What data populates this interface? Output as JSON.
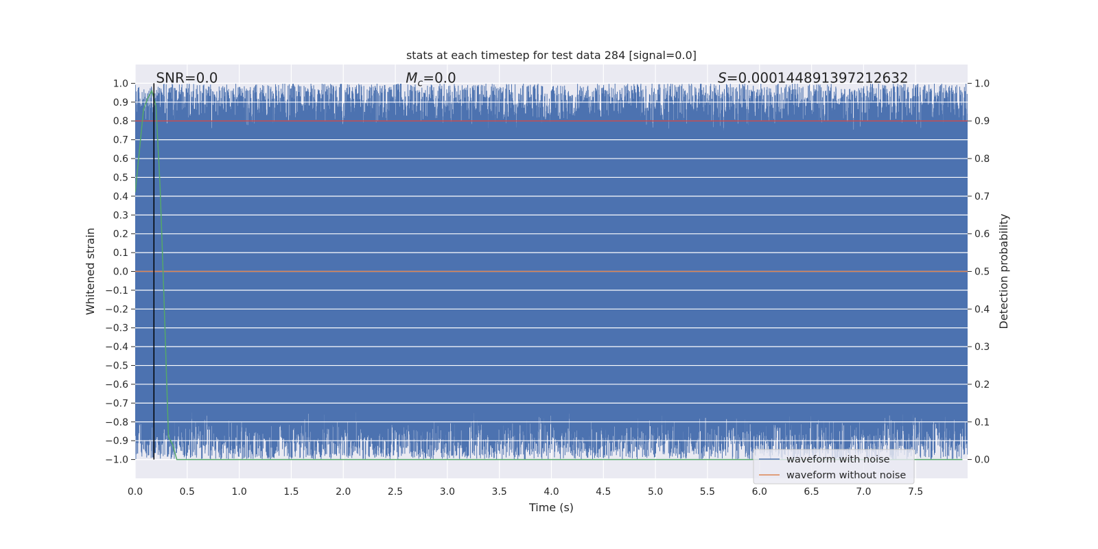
{
  "chart_data": {
    "type": "line",
    "title": "stats at each timestep for test data 284 [signal=0.0]",
    "xlabel": "Time (s)",
    "ylabel": "Whitened strain",
    "y2label": "Detection probability",
    "xlim": [
      0.0,
      8.0
    ],
    "ylim": [
      -1.1,
      1.1
    ],
    "y2lim": [
      -0.05,
      1.05
    ],
    "x_ticks": [
      0.0,
      0.5,
      1.0,
      1.5,
      2.0,
      2.5,
      3.0,
      3.5,
      4.0,
      4.5,
      5.0,
      5.5,
      6.0,
      6.5,
      7.0,
      7.5
    ],
    "x_tick_labels": [
      "0.0",
      "0.5",
      "1.0",
      "1.5",
      "2.0",
      "2.5",
      "3.0",
      "3.5",
      "4.0",
      "4.5",
      "5.0",
      "5.5",
      "6.0",
      "6.5",
      "7.0",
      "7.5"
    ],
    "y_ticks": [
      1.0,
      0.9,
      0.8,
      0.7,
      0.6,
      0.5,
      0.4,
      0.3,
      0.2,
      0.1,
      0.0,
      -0.1,
      -0.2,
      -0.3,
      -0.4,
      -0.5,
      -0.6,
      -0.7,
      -0.8,
      -0.9,
      -1.0
    ],
    "y_tick_labels": [
      "1.0",
      "0.9",
      "0.8",
      "0.7",
      "0.6",
      "0.5",
      "0.4",
      "0.3",
      "0.2",
      "0.1",
      "0.0",
      "−0.1",
      "−0.2",
      "−0.3",
      "−0.4",
      "−0.5",
      "−0.6",
      "−0.7",
      "−0.8",
      "−0.9",
      "−1.0"
    ],
    "y2_ticks": [
      1.0,
      0.9,
      0.8,
      0.7,
      0.6,
      0.5,
      0.4,
      0.3,
      0.2,
      0.1,
      0.0
    ],
    "y2_tick_labels": [
      "1.0",
      "0.9",
      "0.8",
      "0.7",
      "0.6",
      "0.5",
      "0.4",
      "0.3",
      "0.2",
      "0.1",
      "0.0"
    ],
    "grid": true,
    "legend_position": "lower-right",
    "series": [
      {
        "name": "waveform with noise",
        "color": "#4c72b0",
        "axis": "left",
        "description_values": {
          "min": -1.0,
          "max": 1.0,
          "typical_upper_envelope": [
            0.75,
            1.0
          ],
          "typical_lower_envelope": [
            -1.0,
            -0.75
          ]
        }
      },
      {
        "name": "waveform without noise",
        "color": "#dd8452",
        "axis": "left",
        "x": [
          0.0,
          8.0
        ],
        "y": [
          0.0,
          0.0
        ]
      },
      {
        "name": "",
        "color": "#55a868",
        "axis": "right",
        "x": [
          0.0,
          0.04,
          0.08,
          0.12,
          0.16,
          0.2,
          0.24,
          0.28,
          0.32,
          0.36,
          0.4,
          1.0,
          2.0,
          3.0,
          4.0,
          5.0,
          6.0,
          7.0,
          7.95
        ],
        "y": [
          0.71,
          0.82,
          0.93,
          0.96,
          0.98,
          0.94,
          0.72,
          0.4,
          0.06,
          0.04,
          0.0,
          0.0,
          0.0,
          0.0,
          0.0,
          0.0,
          0.0,
          0.0,
          0.0
        ]
      },
      {
        "name": "",
        "color": "#c44e52",
        "axis": "right",
        "x": [
          0.0,
          8.0
        ],
        "y": [
          0.9,
          0.9
        ]
      }
    ],
    "vertical_line": {
      "x": 0.18,
      "color": "#000000"
    },
    "annotations": [
      {
        "text": "SNR=0.0",
        "x": 0.2,
        "y": 1.0
      },
      {
        "text_prefix": "M",
        "text_sub": "c",
        "text_suffix": "=0.0",
        "x": 2.6,
        "y": 1.0
      },
      {
        "text_prefix": "S",
        "text_suffix": "=0.000144891397212632",
        "x": 5.6,
        "y": 1.0
      }
    ],
    "colors": {
      "axes_bg": "#eaeaf2",
      "grid": "#ffffff",
      "text": "#262626"
    }
  }
}
